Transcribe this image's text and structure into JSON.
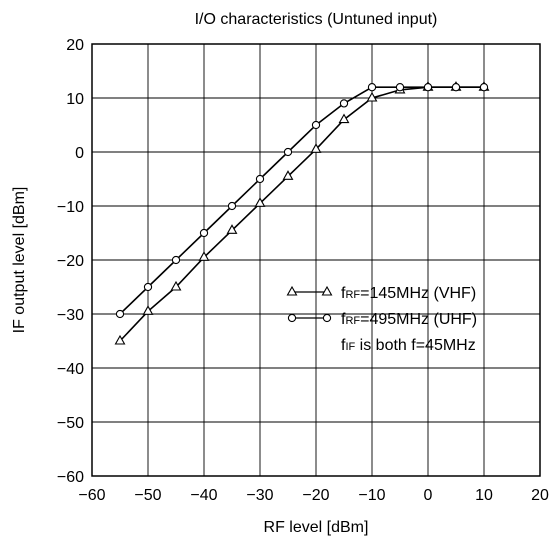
{
  "chart_data": {
    "type": "line",
    "title": "I/O characteristics (Untuned input)",
    "xlabel": "RF level [dBm]",
    "ylabel": "IF output level [dBm]",
    "xlim": [
      -60,
      20
    ],
    "ylim": [
      -60,
      20
    ],
    "xticks": [
      -60,
      -50,
      -40,
      -30,
      -20,
      -10,
      0,
      10,
      20
    ],
    "yticks": [
      -60,
      -50,
      -40,
      -30,
      -20,
      -10,
      0,
      10,
      20
    ],
    "grid": true,
    "legend_position": "right",
    "series": [
      {
        "name_main": "f",
        "name_sub": "RF",
        "name_rest": "=145MHz (VHF)",
        "marker": "triangle",
        "x": [
          -55,
          -50,
          -45,
          -40,
          -35,
          -30,
          -25,
          -20,
          -15,
          -10,
          -5,
          0,
          5,
          10
        ],
        "y": [
          -35,
          -29.5,
          -25,
          -19.5,
          -14.5,
          -9.5,
          -4.5,
          0.5,
          6,
          10,
          11.5,
          12,
          12,
          12
        ]
      },
      {
        "name_main": "f",
        "name_sub": "RF",
        "name_rest": "=495MHz (UHF)",
        "marker": "circle",
        "x": [
          -55,
          -50,
          -45,
          -40,
          -35,
          -30,
          -25,
          -20,
          -15,
          -10,
          -5,
          0,
          5,
          10
        ],
        "y": [
          -30,
          -25,
          -20,
          -15,
          -10,
          -5,
          0,
          5,
          9,
          12,
          12,
          12,
          12,
          12
        ]
      }
    ],
    "note_main": "f",
    "note_sub": "IF",
    "note_rest": " is both f=45MHz"
  }
}
